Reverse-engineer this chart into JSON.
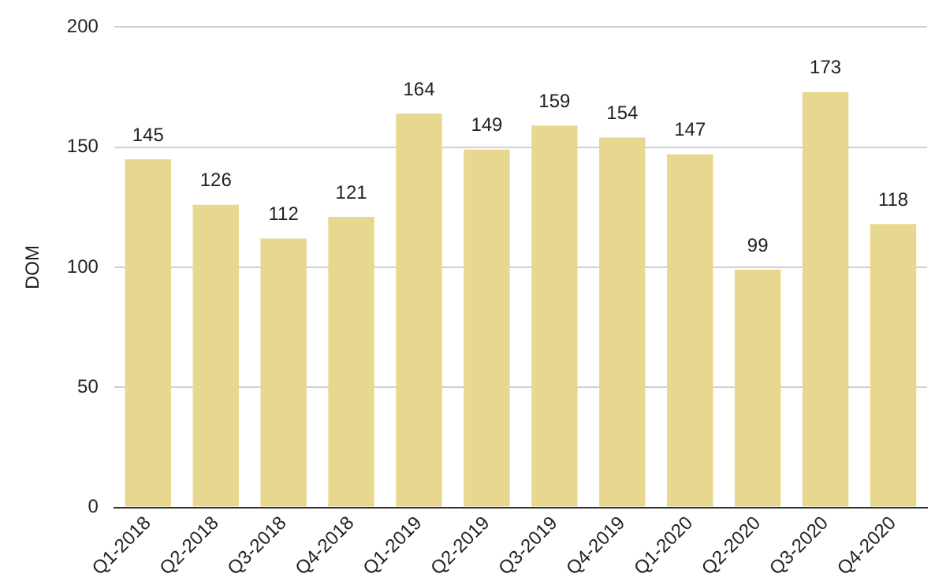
{
  "chart_data": {
    "type": "bar",
    "ylabel": "DOM",
    "categories": [
      "Q1-2018",
      "Q2-2018",
      "Q3-2018",
      "Q4-2018",
      "Q1-2019",
      "Q2-2019",
      "Q3-2019",
      "Q4-2019",
      "Q1-2020",
      "Q2-2020",
      "Q3-2020",
      "Q4-2020"
    ],
    "values": [
      145,
      126,
      112,
      121,
      164,
      149,
      159,
      154,
      147,
      99,
      173,
      118
    ],
    "color": "#e8d88f",
    "ylim": [
      0,
      200
    ],
    "yticks": [
      0,
      50,
      100,
      150,
      200
    ],
    "grid": "y",
    "data_labels": true,
    "legend": false
  }
}
